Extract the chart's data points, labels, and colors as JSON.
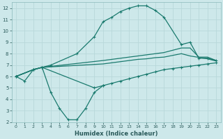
{
  "xlabel": "Humidex (Indice chaleur)",
  "bg_color": "#cde8ea",
  "grid_color": "#b8d8da",
  "line_color": "#1a7a6e",
  "xlim": [
    -0.5,
    23.5
  ],
  "ylim": [
    2,
    12.5
  ],
  "xticks": [
    0,
    1,
    2,
    3,
    4,
    5,
    6,
    7,
    8,
    9,
    10,
    11,
    12,
    13,
    14,
    15,
    16,
    17,
    18,
    19,
    20,
    21,
    22,
    23
  ],
  "yticks": [
    2,
    3,
    4,
    5,
    6,
    7,
    8,
    9,
    10,
    11,
    12
  ],
  "series_main": {
    "x": [
      0,
      2,
      3,
      4,
      7,
      9,
      10,
      11,
      12,
      13,
      14,
      15,
      16,
      17,
      19,
      20,
      21,
      22,
      23
    ],
    "y": [
      6.0,
      6.6,
      6.8,
      7.0,
      8.0,
      9.5,
      10.8,
      11.2,
      11.7,
      12.0,
      12.2,
      12.2,
      11.8,
      11.2,
      8.8,
      9.0,
      7.6,
      7.6,
      7.4
    ]
  },
  "series_mid_upper": {
    "x": [
      0,
      2,
      3,
      10,
      11,
      12,
      13,
      14,
      15,
      16,
      17,
      19,
      20,
      21,
      22,
      23
    ],
    "y": [
      6.0,
      6.6,
      6.8,
      7.4,
      7.5,
      7.6,
      7.7,
      7.8,
      7.9,
      8.0,
      8.1,
      8.5,
      8.5,
      7.7,
      7.7,
      7.4
    ]
  },
  "series_mid_lower": {
    "x": [
      0,
      2,
      3,
      10,
      11,
      12,
      13,
      14,
      15,
      16,
      17,
      19,
      20,
      22,
      23
    ],
    "y": [
      6.0,
      6.6,
      6.8,
      7.1,
      7.2,
      7.3,
      7.4,
      7.5,
      7.55,
      7.65,
      7.7,
      8.0,
      7.8,
      7.55,
      7.35
    ]
  },
  "series_zigzag": {
    "x": [
      0,
      1,
      2,
      3,
      4,
      5,
      6,
      7,
      8,
      9,
      10
    ],
    "y": [
      6.0,
      5.6,
      6.6,
      6.8,
      4.6,
      3.2,
      2.2,
      2.2,
      3.2,
      4.6,
      5.2
    ]
  },
  "series_bottom": {
    "x": [
      0,
      2,
      3,
      9,
      10,
      11,
      12,
      13,
      14,
      15,
      16,
      17,
      18,
      19,
      20,
      21,
      22,
      23
    ],
    "y": [
      6.0,
      6.6,
      6.8,
      5.0,
      5.2,
      5.4,
      5.6,
      5.8,
      6.0,
      6.2,
      6.4,
      6.6,
      6.7,
      6.8,
      6.9,
      7.0,
      7.1,
      7.2
    ]
  }
}
